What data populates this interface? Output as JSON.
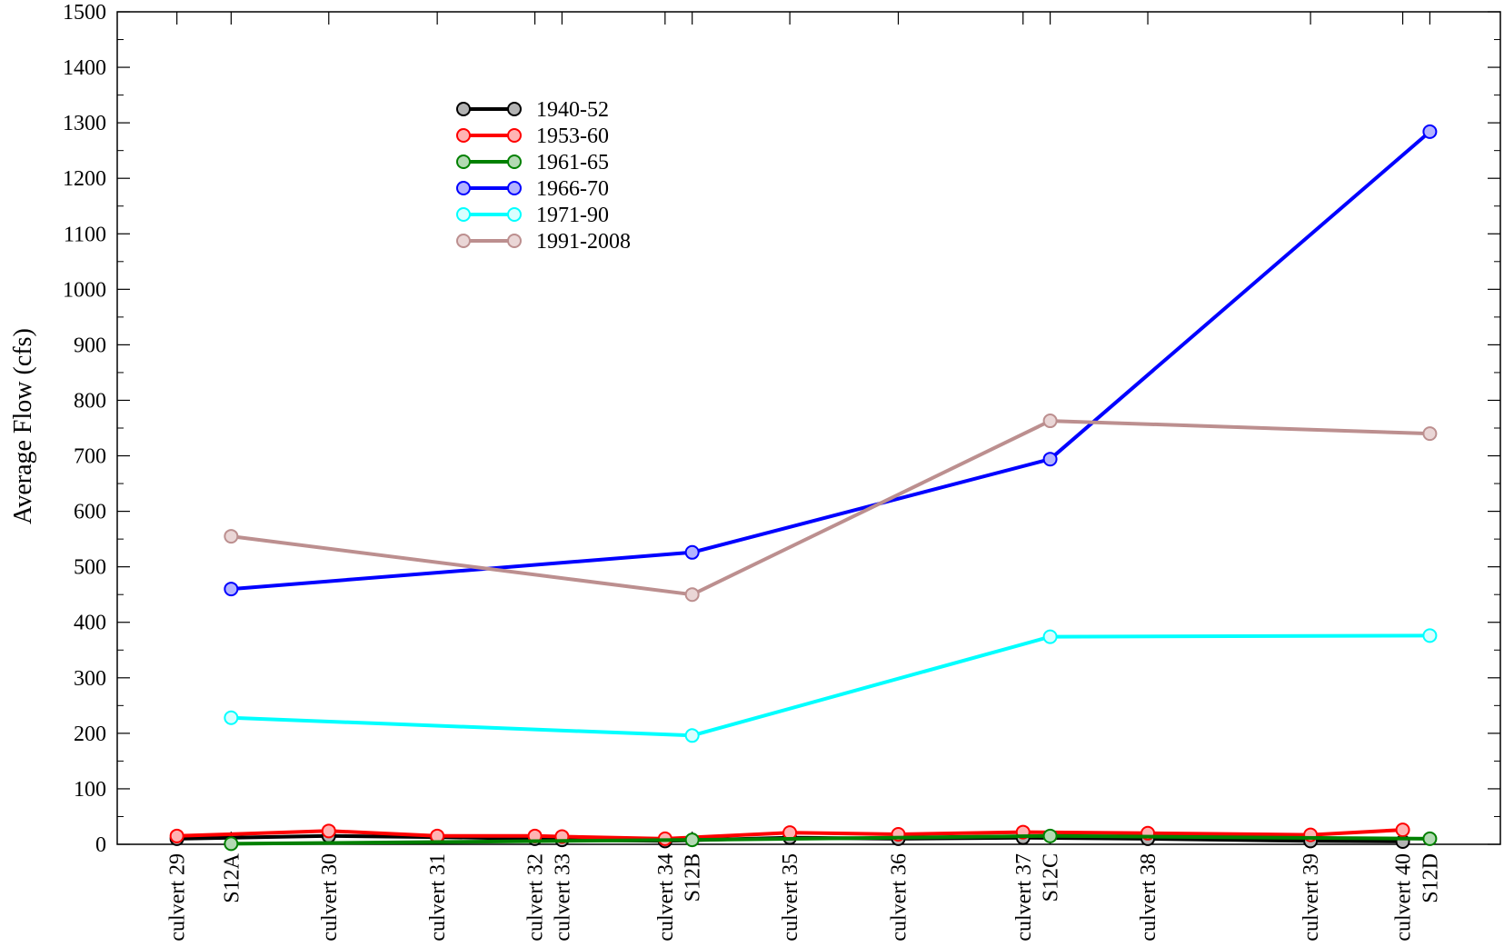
{
  "chart_data": {
    "type": "line",
    "title": "",
    "xlabel": "",
    "ylabel": "Average Flow (cfs)",
    "ylim": [
      0,
      1500
    ],
    "yticks": [
      0,
      100,
      200,
      300,
      400,
      500,
      600,
      700,
      800,
      900,
      1000,
      1100,
      1200,
      1300,
      1400,
      1500
    ],
    "grid": false,
    "legend_position": "top-center",
    "x_categories": [
      {
        "label": "culvert 29",
        "pos": 0.55
      },
      {
        "label": "S12A",
        "pos": 1.05
      },
      {
        "label": "culvert 30",
        "pos": 1.95
      },
      {
        "label": "culvert 31",
        "pos": 2.95
      },
      {
        "label": "culvert 32",
        "pos": 3.85
      },
      {
        "label": "culvert 33",
        "pos": 4.1
      },
      {
        "label": "culvert 34",
        "pos": 5.05
      },
      {
        "label": "S12B",
        "pos": 5.3
      },
      {
        "label": "culvert 35",
        "pos": 6.2
      },
      {
        "label": "culvert 36",
        "pos": 7.2
      },
      {
        "label": "culvert 37",
        "pos": 8.35
      },
      {
        "label": "S12C",
        "pos": 8.6
      },
      {
        "label": "culvert 38",
        "pos": 9.5
      },
      {
        "label": "culvert 39",
        "pos": 11.0
      },
      {
        "label": "culvert 40",
        "pos": 11.85
      },
      {
        "label": "S12D",
        "pos": 12.1
      }
    ],
    "xlim": [
      0,
      12.75
    ],
    "series": [
      {
        "name": "1940-52",
        "color": "#000000",
        "marker_fill": "#b3b3b3",
        "x": [
          0.55,
          1.95,
          2.95,
          3.85,
          4.1,
          5.05,
          6.2,
          7.2,
          8.35,
          9.5,
          11.0,
          11.85
        ],
        "y": [
          10,
          15,
          13,
          10,
          8,
          6,
          12,
          10,
          12,
          10,
          6,
          5
        ]
      },
      {
        "name": "1953-60",
        "color": "#ff0000",
        "marker_fill": "#ffb3b3",
        "x": [
          0.55,
          1.95,
          2.95,
          3.85,
          4.1,
          5.05,
          6.2,
          7.2,
          8.35,
          9.5,
          11.0,
          11.85
        ],
        "y": [
          15,
          24,
          15,
          15,
          14,
          10,
          21,
          18,
          22,
          20,
          17,
          26
        ]
      },
      {
        "name": "1961-65",
        "color": "#008000",
        "marker_fill": "#b3d9b3",
        "x": [
          1.05,
          5.3,
          8.6,
          12.1
        ],
        "y": [
          1,
          8,
          15,
          10
        ]
      },
      {
        "name": "1966-70",
        "color": "#0000ff",
        "marker_fill": "#b3b3ff",
        "x": [
          1.05,
          5.3,
          8.6,
          12.1
        ],
        "y": [
          460,
          526,
          694,
          1284
        ]
      },
      {
        "name": "1971-90",
        "color": "#00ffff",
        "marker_fill": "#d9ffff",
        "x": [
          1.05,
          5.3,
          8.6,
          12.1
        ],
        "y": [
          228,
          196,
          374,
          376
        ]
      },
      {
        "name": "1991-2008",
        "color": "#bc8f8f",
        "marker_fill": "#ead6d6",
        "x": [
          1.05,
          5.3,
          8.6,
          12.1
        ],
        "y": [
          555,
          450,
          763,
          740
        ]
      }
    ]
  }
}
